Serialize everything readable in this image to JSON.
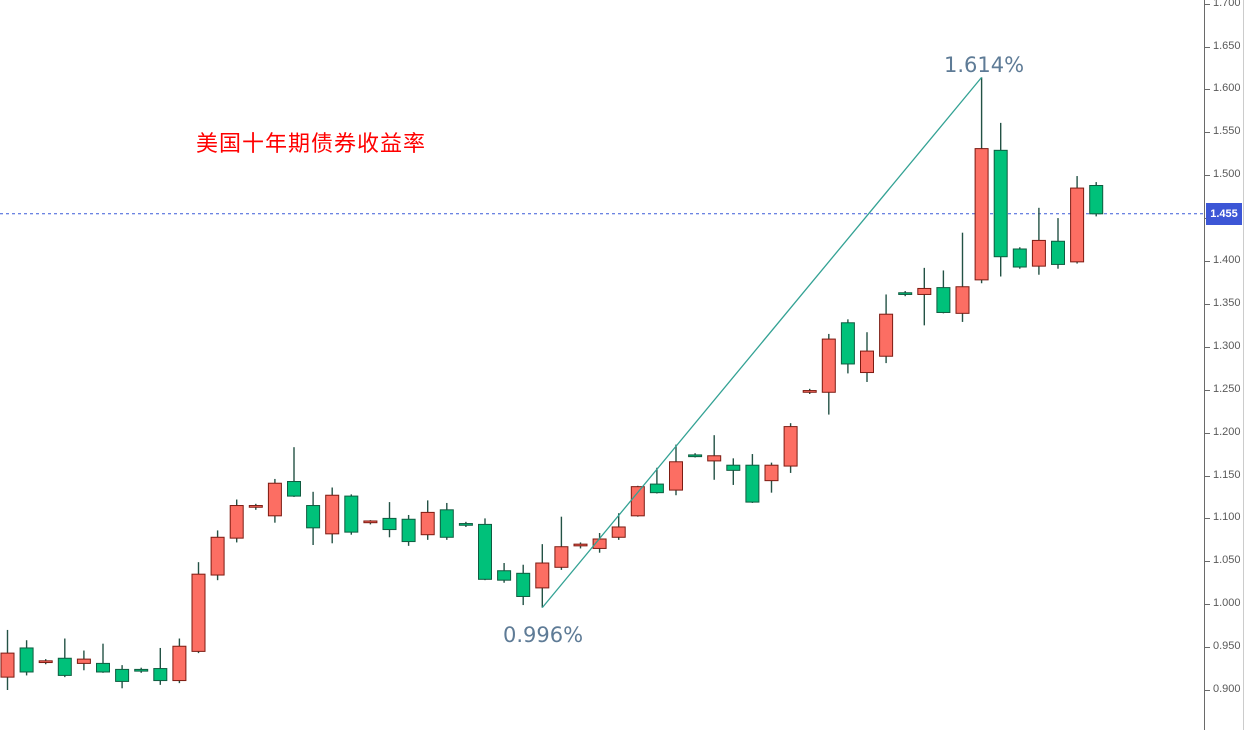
{
  "chart_data": {
    "type": "candlestick",
    "title": "美国十年期债券收益率",
    "current_price": 1.455,
    "current_price_label": "1.455",
    "y_axis": {
      "position": "right",
      "min": 0.868,
      "max": 1.705,
      "tick_step": 0.05,
      "tick_labels": [
        "1.700",
        "1.650",
        "1.600",
        "1.550",
        "1.500",
        "1.450",
        "1.400",
        "1.350",
        "1.300",
        "1.250",
        "1.200",
        "1.150",
        "1.100",
        "1.050",
        "1.000",
        "0.950",
        "0.900"
      ]
    },
    "x_axis": {
      "visible": false
    },
    "grid": false,
    "trend_line": {
      "from_candle": 28,
      "from_value": 0.996,
      "to_candle": 51,
      "to_value": 1.614,
      "label_low": "0.996%",
      "label_high": "1.614%"
    },
    "colors": {
      "up_fill": "#fc6e63",
      "up_border": "#7c1b12",
      "down_fill": "#00c17a",
      "down_border": "#0f5c40",
      "wick": "#235245",
      "trend_line": "#33a294",
      "current_price_line": "#3b5bd9",
      "current_price_badge": "#3c56d6",
      "axis_text": "#595959",
      "title_text": "#ff0000",
      "annotation_text": "#5e7b96"
    },
    "candles_format": [
      "open",
      "high",
      "low",
      "close"
    ],
    "candles": [
      [
        0.915,
        0.97,
        0.9,
        0.943
      ],
      [
        0.949,
        0.958,
        0.917,
        0.921
      ],
      [
        0.932,
        0.936,
        0.93,
        0.934
      ],
      [
        0.937,
        0.96,
        0.915,
        0.917
      ],
      [
        0.931,
        0.946,
        0.923,
        0.936
      ],
      [
        0.931,
        0.954,
        0.92,
        0.921
      ],
      [
        0.924,
        0.929,
        0.902,
        0.91
      ],
      [
        0.924,
        0.926,
        0.92,
        0.922
      ],
      [
        0.925,
        0.949,
        0.906,
        0.911
      ],
      [
        0.911,
        0.96,
        0.908,
        0.951
      ],
      [
        0.945,
        1.049,
        0.943,
        1.035
      ],
      [
        1.034,
        1.086,
        1.028,
        1.078
      ],
      [
        1.077,
        1.122,
        1.072,
        1.115
      ],
      [
        1.113,
        1.117,
        1.11,
        1.115
      ],
      [
        1.103,
        1.146,
        1.095,
        1.141
      ],
      [
        1.143,
        1.183,
        1.125,
        1.126
      ],
      [
        1.115,
        1.131,
        1.069,
        1.089
      ],
      [
        1.082,
        1.136,
        1.071,
        1.127
      ],
      [
        1.126,
        1.128,
        1.081,
        1.084
      ],
      [
        1.095,
        1.098,
        1.093,
        1.097
      ],
      [
        1.1,
        1.119,
        1.078,
        1.087
      ],
      [
        1.099,
        1.104,
        1.068,
        1.073
      ],
      [
        1.081,
        1.121,
        1.075,
        1.107
      ],
      [
        1.11,
        1.118,
        1.075,
        1.078
      ],
      [
        1.094,
        1.096,
        1.09,
        1.092
      ],
      [
        1.093,
        1.1,
        1.028,
        1.029
      ],
      [
        1.039,
        1.048,
        1.025,
        1.028
      ],
      [
        1.036,
        1.046,
        0.999,
        1.009
      ],
      [
        1.019,
        1.07,
        0.996,
        1.048
      ],
      [
        1.043,
        1.102,
        1.04,
        1.067
      ],
      [
        1.068,
        1.072,
        1.065,
        1.07
      ],
      [
        1.065,
        1.083,
        1.06,
        1.076
      ],
      [
        1.078,
        1.106,
        1.075,
        1.09
      ],
      [
        1.103,
        1.138,
        1.102,
        1.137
      ],
      [
        1.14,
        1.159,
        1.129,
        1.13
      ],
      [
        1.133,
        1.186,
        1.127,
        1.166
      ],
      [
        1.174,
        1.176,
        1.171,
        1.172
      ],
      [
        1.167,
        1.197,
        1.145,
        1.173
      ],
      [
        1.162,
        1.17,
        1.139,
        1.156
      ],
      [
        1.162,
        1.175,
        1.118,
        1.119
      ],
      [
        1.144,
        1.165,
        1.13,
        1.162
      ],
      [
        1.161,
        1.211,
        1.153,
        1.207
      ],
      [
        1.247,
        1.251,
        1.245,
        1.249
      ],
      [
        1.247,
        1.315,
        1.221,
        1.309
      ],
      [
        1.328,
        1.332,
        1.269,
        1.28
      ],
      [
        1.27,
        1.317,
        1.259,
        1.295
      ],
      [
        1.289,
        1.361,
        1.281,
        1.338
      ],
      [
        1.363,
        1.365,
        1.359,
        1.361
      ],
      [
        1.361,
        1.392,
        1.325,
        1.368
      ],
      [
        1.369,
        1.389,
        1.339,
        1.34
      ],
      [
        1.339,
        1.433,
        1.329,
        1.37
      ],
      [
        1.378,
        1.614,
        1.374,
        1.531
      ],
      [
        1.529,
        1.561,
        1.382,
        1.405
      ],
      [
        1.414,
        1.416,
        1.391,
        1.393
      ],
      [
        1.394,
        1.462,
        1.384,
        1.424
      ],
      [
        1.423,
        1.45,
        1.391,
        1.396
      ],
      [
        1.399,
        1.499,
        1.397,
        1.485
      ],
      [
        1.488,
        1.492,
        1.452,
        1.455
      ]
    ]
  }
}
